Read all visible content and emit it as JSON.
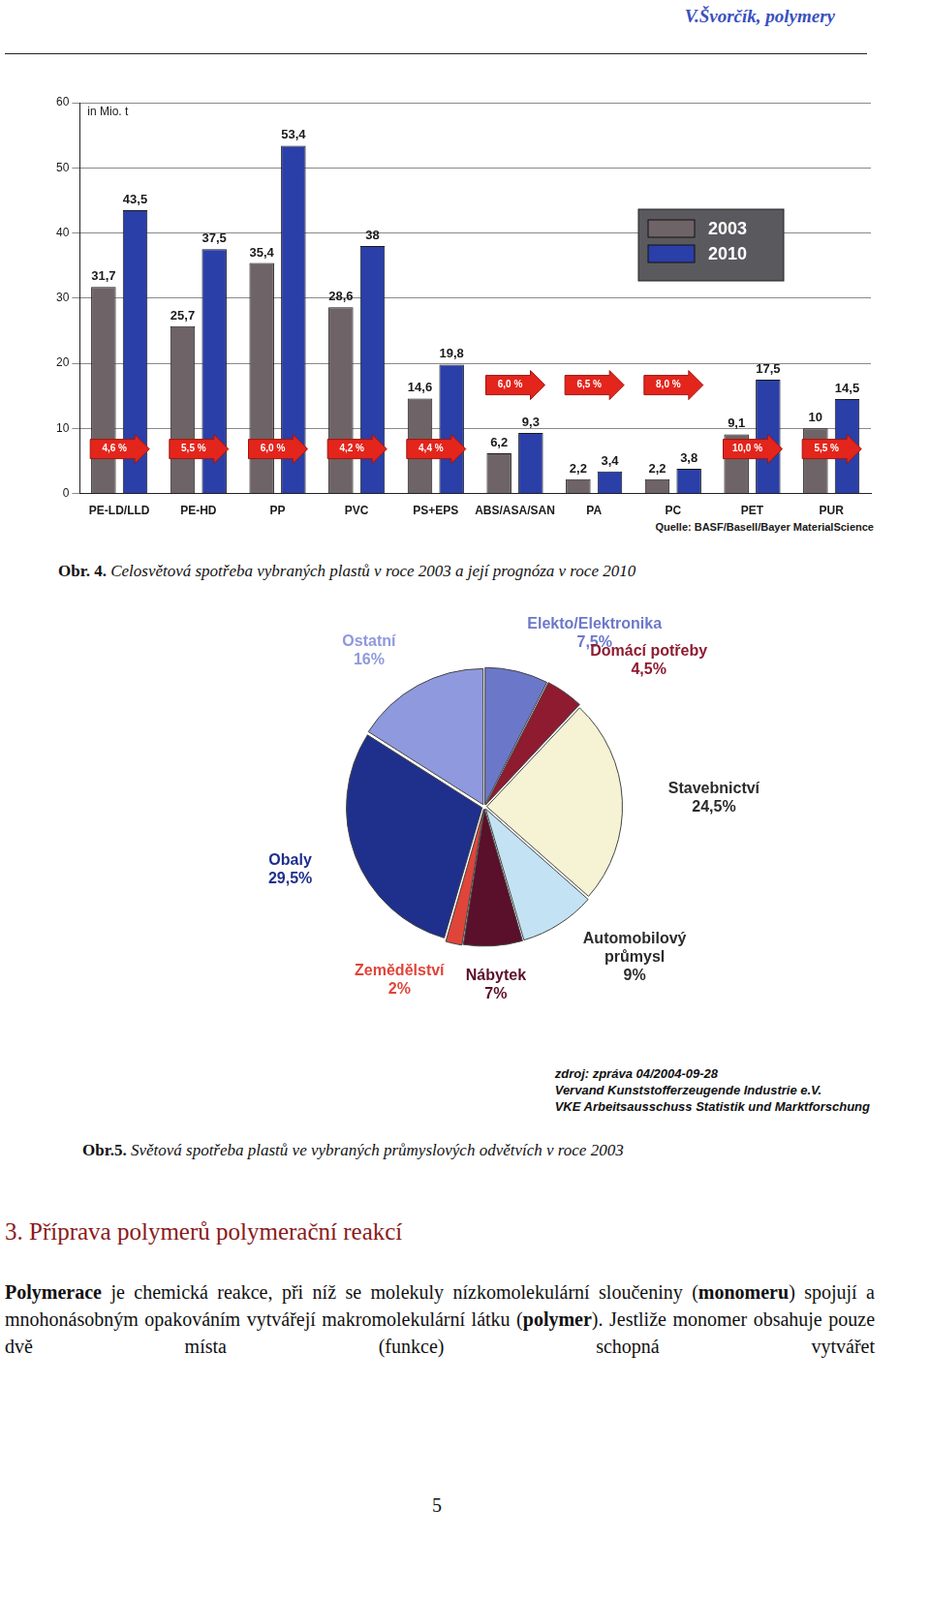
{
  "header": "V.Švorčík, polymery",
  "chart_data": [
    {
      "type": "bar",
      "ylabel": "in Mio. t",
      "categories": [
        "PE-LD/LLD",
        "PE-HD",
        "PP",
        "PVC",
        "PS+EPS",
        "ABS/ASA/SAN",
        "PA",
        "PC",
        "PET",
        "PUR"
      ],
      "series": [
        {
          "name": "2003",
          "color": "#6e6366",
          "values": [
            31.7,
            25.7,
            35.4,
            28.6,
            14.6,
            6.2,
            2.2,
            2.2,
            9.1,
            10
          ],
          "value_labels": [
            "31,7",
            "25,7",
            "35,4",
            "28,6",
            "14,6",
            "6,2",
            "2,2",
            "2,2",
            "9,1",
            "10"
          ]
        },
        {
          "name": "2010",
          "color": "#2a3fa8",
          "values": [
            43.5,
            37.5,
            53.4,
            38,
            19.8,
            9.3,
            3.4,
            3.8,
            17.5,
            14.5
          ],
          "value_labels": [
            "43,5",
            "37,5",
            "53,4",
            "38",
            "19,8",
            "9,3",
            "3,4",
            "3,8",
            "17,5",
            "14,5"
          ]
        }
      ],
      "annotations": [
        "4,6 %",
        "5,5 %",
        "6,0 %",
        "4,2 %",
        "4,4 %",
        "6,0 %",
        "6,5 %",
        "8,0 %",
        "10,0 %",
        "5,5 %"
      ],
      "ylim": [
        0,
        60
      ],
      "yticks": [
        0,
        10,
        20,
        30,
        40,
        50,
        60
      ],
      "grid": true,
      "legend": "upper right",
      "data_labels": true,
      "source": "Quelle: BASF/Basell/Bayer MaterialScience"
    },
    {
      "type": "pie",
      "categories": [
        "Elekto/Elektronika",
        "Domácí potřeby",
        "Stavebnictví",
        "Automobilový průmysl",
        "Nábytek",
        "Zemědělství",
        "Obaly",
        "Ostatní"
      ],
      "values": [
        7.5,
        4.5,
        24.5,
        9,
        7,
        2,
        29.5,
        16
      ],
      "value_labels": [
        "7,5%",
        "4,5%",
        "24,5%",
        "9%",
        "7%",
        "2%",
        "29,5%",
        "16%"
      ],
      "colors": [
        "#6b78c9",
        "#8e1b30",
        "#f6f2d4",
        "#c3e2f4",
        "#5a0f2a",
        "#e0453a",
        "#1f2f8c",
        "#8f99dd"
      ],
      "data_labels": true,
      "source": [
        "zdroj: zpráva 04/2004-09-28",
        "Vervand Kunststofferzeugende Industrie e.V.",
        "VKE Arbeitsausschuss Statistik und Marktforschung"
      ]
    }
  ],
  "captions": [
    {
      "label": "Obr. 4.",
      "text": "Celosvětová spotřeba vybraných plastů v roce 2003 a její prognóza v roce 2010"
    },
    {
      "label": "Obr.5.",
      "text": "Světová spotřeba plastů ve vybraných průmyslových odvětvích v roce 2003"
    }
  ],
  "section": {
    "title": "3. Příprava polymerů polymerační reakcí",
    "paragraph": [
      {
        "text": "Polymerace",
        "bold": true
      },
      {
        "text": " je chemická reakce, při níž se molekuly nízkomolekulární sloučeniny (",
        "bold": false
      },
      {
        "text": "monomeru",
        "bold": true
      },
      {
        "text": ") spojují a mnohonásobným opakováním vytvářejí makromolekulární látku (",
        "bold": false
      },
      {
        "text": "polymer",
        "bold": true
      },
      {
        "text": "). Jestliže monomer obsahuje pouze dvě místa (funkce) schopná vytvářet",
        "bold": false
      }
    ]
  },
  "page_number": "5"
}
